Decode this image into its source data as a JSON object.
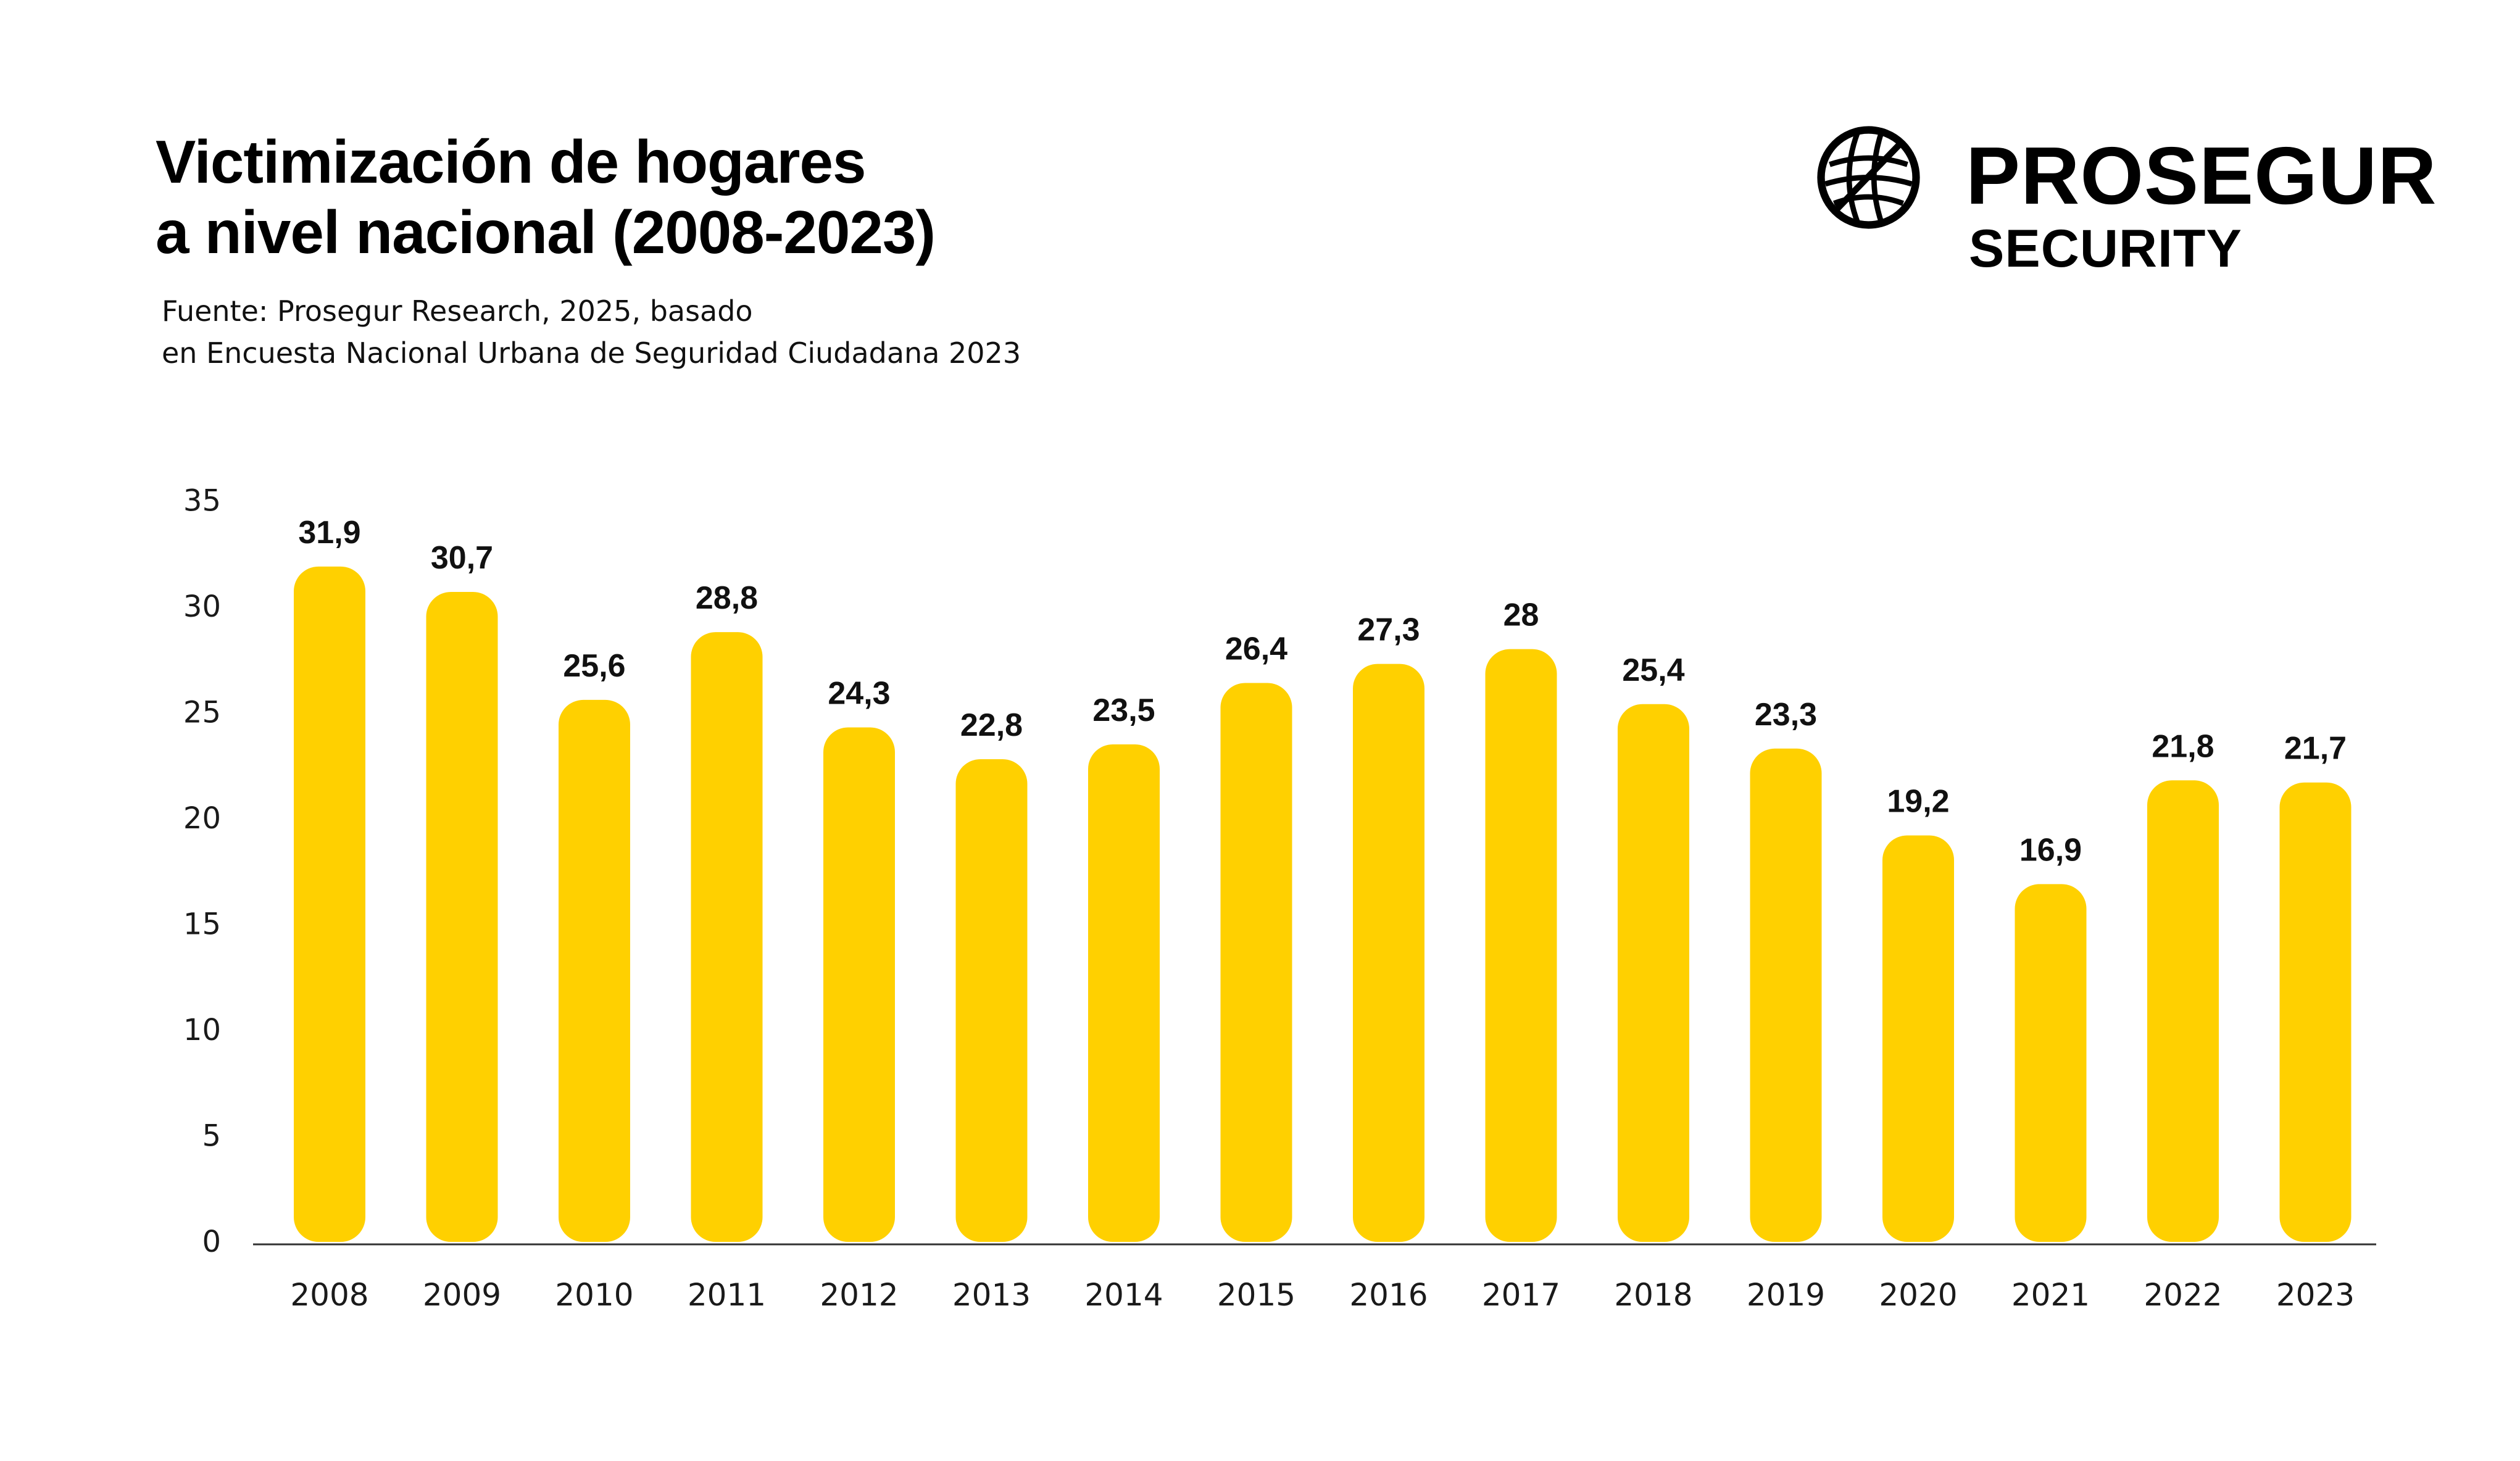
{
  "title": {
    "line1": "Victimización de hogares",
    "line2": "a nivel nacional (2008-2023)"
  },
  "source": {
    "line1": "Fuente:  Prosegur Research, 2025, basado",
    "line2": "en Encuesta Nacional Urbana de Seguridad Ciudadana 2023"
  },
  "logo": {
    "icon": "globe-icon",
    "brand": "PROSEGUR",
    "sub": "SECURITY"
  },
  "colors": {
    "bar": "#FFD000",
    "axis": "#333333",
    "text": "#111111"
  },
  "chart_data": {
    "type": "bar",
    "categories": [
      "2008",
      "2009",
      "2010",
      "2011",
      "2012",
      "2013",
      "2014",
      "2015",
      "2016",
      "2017",
      "2018",
      "2019",
      "2020",
      "2021",
      "2022",
      "2023"
    ],
    "values": [
      31.9,
      30.7,
      25.6,
      28.8,
      24.3,
      22.8,
      23.5,
      26.4,
      27.3,
      28,
      25.4,
      23.3,
      19.2,
      16.9,
      21.8,
      21.7
    ],
    "value_labels": [
      "31,9",
      "30,7",
      "25,6",
      "28,8",
      "24,3",
      "22,8",
      "23,5",
      "26,4",
      "27,3",
      "28",
      "25,4",
      "23,3",
      "19,2",
      "16,9",
      "21,8",
      "21,7"
    ],
    "yticks": [
      "0",
      "5",
      "10",
      "15",
      "20",
      "25",
      "30",
      "35"
    ],
    "ylim": [
      0,
      35
    ],
    "grid": false,
    "legend": "none"
  }
}
